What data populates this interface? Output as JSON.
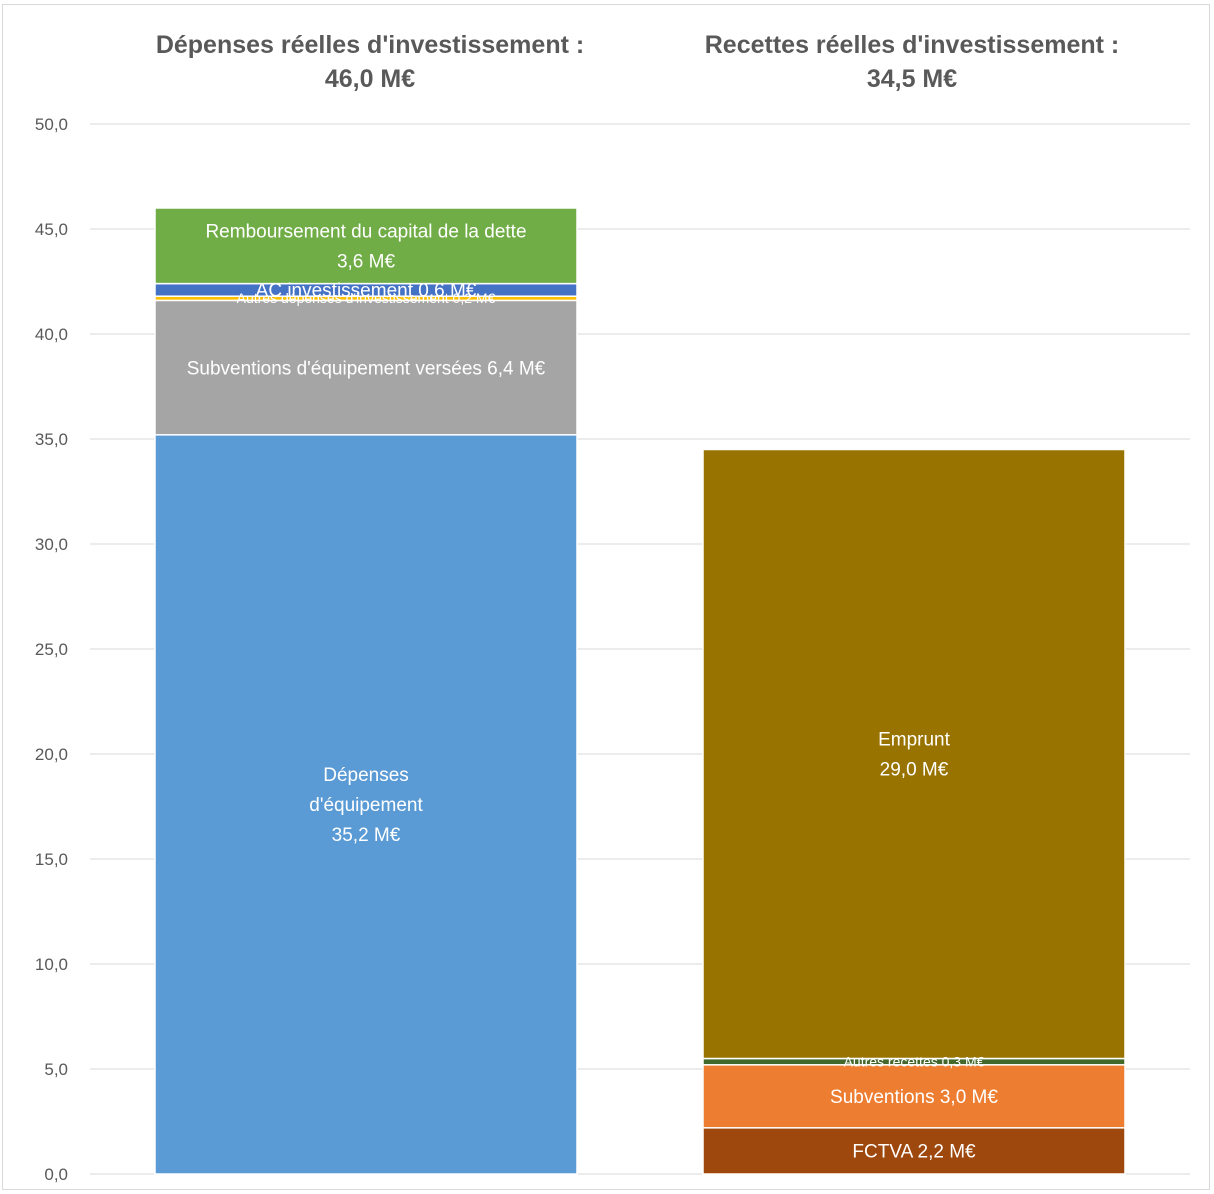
{
  "chart_data": {
    "type": "bar",
    "stacked": true,
    "categories": [
      "Dépenses réelles d'investissement",
      "Recettes réelles d'investissement"
    ],
    "titles": [
      {
        "line1": "Dépenses réelles d'investissement :",
        "line2": "46,0 M€"
      },
      {
        "line1": "Recettes réelles d'investissement :",
        "line2": "34,5 M€"
      }
    ],
    "ylim": [
      0,
      50
    ],
    "yticks": [
      "0,0",
      "5,0",
      "10,0",
      "15,0",
      "20,0",
      "25,0",
      "30,0",
      "35,0",
      "40,0",
      "45,0",
      "50,0"
    ],
    "grid": true,
    "bars": [
      {
        "segments": [
          {
            "value": 35.2,
            "color": "#5b9bd5",
            "label": [
              "Dépenses",
              "d'équipement",
              "35,2 M€"
            ]
          },
          {
            "value": 6.4,
            "color": "#a5a5a5",
            "label": [
              "Subventions d'équipement versées 6,4 M€"
            ]
          },
          {
            "value": 0.2,
            "color": "#ffc000",
            "label": [
              "Autres dépenses d'investissement 0,2 M€"
            ]
          },
          {
            "value": 0.6,
            "color": "#4472c4",
            "label": [
              "AC investissement 0,6 M€"
            ]
          },
          {
            "value": 3.6,
            "color": "#70ad47",
            "label": [
              "Remboursement du capital de la dette",
              "3,6 M€"
            ]
          }
        ]
      },
      {
        "segments": [
          {
            "value": 2.2,
            "color": "#9e480e",
            "label": [
              "FCTVA 2,2 M€"
            ]
          },
          {
            "value": 3.0,
            "color": "#ed7d31",
            "label": [
              "Subventions 3,0 M€"
            ]
          },
          {
            "value": 0.3,
            "color": "#43682b",
            "label": [
              "Autres recettes 0,3 M€"
            ]
          },
          {
            "value": 29.0,
            "color": "#997300",
            "label": [
              "Emprunt",
              "29,0 M€"
            ]
          }
        ]
      }
    ]
  }
}
